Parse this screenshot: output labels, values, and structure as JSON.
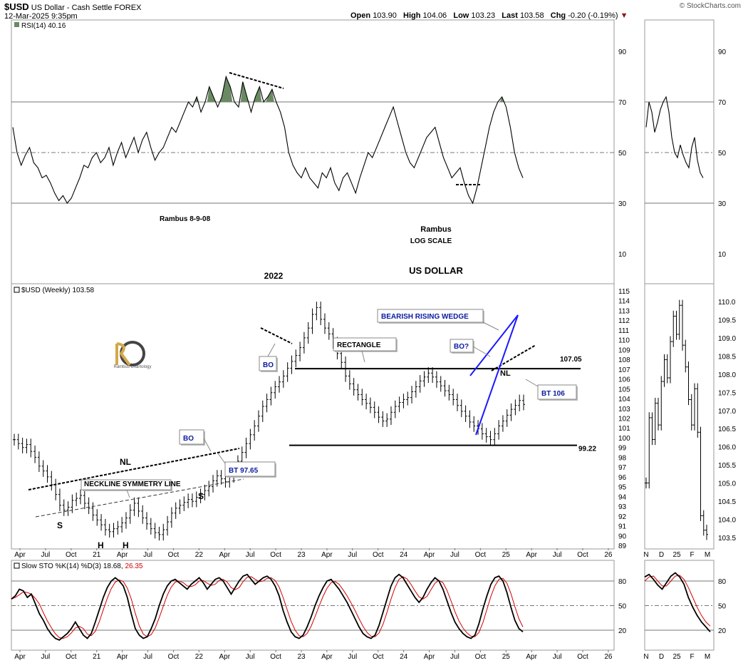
{
  "header": {
    "symbol": "$USD",
    "description": "US Dollar - Cash Settle  FOREX",
    "datetime": "12-Mar-2025 9:35pm",
    "brand": "© StockCharts.com",
    "open_label": "Open",
    "open": "103.90",
    "high_label": "High",
    "high": "104.06",
    "low_label": "Low",
    "low": "103.23",
    "last_label": "Last",
    "last": "103.58",
    "chg_label": "Chg",
    "chg": "-0.20 (-0.19%)",
    "chg_arrow": "▼"
  },
  "colors": {
    "rsi_fill": "#6a8a64",
    "wedge": "#1a1aff",
    "sto_signal": "#d40000",
    "label_blue": "#0a1aa0"
  },
  "x_axis_labels": [
    "Apr",
    "Jul",
    "Oct",
    "21",
    "Apr",
    "Jul",
    "Oct",
    "22",
    "Apr",
    "Jul",
    "Oct",
    "23",
    "Apr",
    "Jul",
    "Oct",
    "24",
    "Apr",
    "Jul",
    "Oct",
    "25",
    "Apr",
    "Jul",
    "Oct",
    "26"
  ],
  "side_x_axis_labels": [
    "N",
    "D",
    "25",
    "F",
    "M"
  ],
  "chart_data": [
    {
      "type": "line",
      "name": "rsi",
      "title": "RSI(14) 40.16",
      "ylim": [
        0,
        100
      ],
      "ticks": [
        90,
        70,
        50,
        30,
        10
      ],
      "reference_lines": [
        70,
        50,
        30
      ],
      "values": [
        60,
        50,
        45,
        49,
        52,
        46,
        44,
        40,
        41,
        38,
        34,
        31,
        33,
        30,
        32,
        36,
        40,
        45,
        44,
        48,
        50,
        46,
        48,
        52,
        45,
        50,
        54,
        48,
        52,
        56,
        50,
        55,
        58,
        52,
        47,
        50,
        52,
        56,
        60,
        58,
        62,
        66,
        70,
        68,
        72,
        66,
        70,
        76,
        72,
        68,
        72,
        80,
        76,
        70,
        68,
        78,
        72,
        66,
        72,
        76,
        70,
        72,
        75,
        70,
        66,
        60,
        50,
        45,
        42,
        40,
        44,
        40,
        38,
        36,
        42,
        40,
        44,
        38,
        35,
        40,
        42,
        38,
        34,
        40,
        45,
        50,
        48,
        52,
        56,
        60,
        64,
        68,
        62,
        56,
        50,
        46,
        44,
        48,
        52,
        56,
        58,
        60,
        54,
        48,
        44,
        40,
        42,
        44,
        38,
        33,
        30,
        36,
        44,
        52,
        60,
        66,
        70,
        72,
        68,
        60,
        50,
        44,
        40
      ],
      "side_values": [
        60,
        70,
        66,
        58,
        62,
        67,
        70,
        72,
        66,
        56,
        50,
        48,
        53,
        49,
        46,
        44,
        52,
        56,
        47,
        42,
        40
      ],
      "annotations": [
        "Rambus  8-9-08",
        "Rambus",
        "LOG SCALE"
      ]
    },
    {
      "type": "bar",
      "name": "price",
      "title": "$USD (Weekly) 103.58",
      "heading": "US DOLLAR",
      "ylim": [
        89,
        115
      ],
      "ticks": [
        115,
        114,
        113,
        112,
        111,
        110,
        109,
        108,
        107,
        106,
        105,
        104,
        103,
        102,
        101,
        100,
        99,
        98,
        97,
        96,
        95,
        94,
        93,
        92,
        91,
        90,
        89
      ],
      "side_ylim": [
        103.3,
        110.2
      ],
      "side_ticks": [
        "110.0",
        "109.5",
        "109.0",
        "108.5",
        "108.0",
        "107.5",
        "107.0",
        "106.5",
        "106.0",
        "105.5",
        "105.0",
        "104.5",
        "104.0",
        "103.5"
      ],
      "closes": [
        99.8,
        99.4,
        99.0,
        99.3,
        98.6,
        98.0,
        97.1,
        96.6,
        96.0,
        95.2,
        94.2,
        93.1,
        92.6,
        92.9,
        93.6,
        93.8,
        94.1,
        93.3,
        92.8,
        92.1,
        91.6,
        91.1,
        90.6,
        90.4,
        90.7,
        90.9,
        91.3,
        91.8,
        92.6,
        93.3,
        92.5,
        91.8,
        91.2,
        90.7,
        90.3,
        90.1,
        90.6,
        91.4,
        92.3,
        92.8,
        93.1,
        93.4,
        93.7,
        93.5,
        93.9,
        94.2,
        94.6,
        95.0,
        95.6,
        96.1,
        95.8,
        95.5,
        96.0,
        96.7,
        97.6,
        98.5,
        99.4,
        100.3,
        101.2,
        102.2,
        103.2,
        103.9,
        104.6,
        105.2,
        105.7,
        106.3,
        107.1,
        107.8,
        108.4,
        109.2,
        110.2,
        111.2,
        112.6,
        113.3,
        112.1,
        111.2,
        110.6,
        109.7,
        108.6,
        107.7,
        106.3,
        105.5,
        104.9,
        104.4,
        103.9,
        103.5,
        103.1,
        102.6,
        102.1,
        101.7,
        101.9,
        102.6,
        103.2,
        103.6,
        103.9,
        104.1,
        104.7,
        105.2,
        105.8,
        106.2,
        106.6,
        106.2,
        105.7,
        105.3,
        104.8,
        104.4,
        103.9,
        103.3,
        102.7,
        102.2,
        101.6,
        101.2,
        100.9,
        100.4,
        100.1,
        99.8,
        100.4,
        101.2,
        101.7,
        102.3,
        102.9,
        103.3,
        103.8,
        103.4
      ],
      "side_closes": [
        105.0,
        106.8,
        106.2,
        107.2,
        106.6,
        107.8,
        108.4,
        107.9,
        108.9,
        109.6,
        109.1,
        109.9,
        108.8,
        108.2,
        107.3,
        106.6,
        107.6,
        106.4,
        104.1,
        103.7,
        103.58
      ],
      "levels": [
        {
          "value": 107.05,
          "label": "107.05"
        },
        {
          "value": 99.22,
          "label": "99.22"
        }
      ],
      "annotations": [
        "2022",
        "RECTANGLE",
        "BEARISH RISING WEDGE",
        "BO",
        "BO",
        "BO?",
        "BT 97.65",
        "BT 106",
        "NL",
        "NL",
        "NECKLINE SYMMETRY LINE",
        "S",
        "S",
        "H",
        "H"
      ],
      "logo_text": "Rambus Chartology"
    },
    {
      "type": "line",
      "name": "stochastic",
      "title": "Slow STO %K(14) %D(3) 18.68, 26.35",
      "k_value": "18.68",
      "d_value": "26.35",
      "ylim": [
        0,
        100
      ],
      "ticks": [
        80,
        50,
        20
      ],
      "reference_lines": [
        80,
        50,
        20
      ],
      "k_values": [
        58,
        62,
        70,
        68,
        60,
        64,
        52,
        40,
        32,
        22,
        15,
        10,
        8,
        12,
        16,
        22,
        30,
        22,
        14,
        10,
        16,
        30,
        45,
        60,
        72,
        80,
        84,
        80,
        74,
        60,
        40,
        22,
        14,
        10,
        12,
        22,
        34,
        50,
        64,
        74,
        80,
        82,
        78,
        74,
        70,
        76,
        80,
        84,
        78,
        70,
        76,
        82,
        84,
        80,
        72,
        64,
        72,
        80,
        86,
        88,
        82,
        76,
        80,
        84,
        86,
        82,
        74,
        62,
        44,
        30,
        18,
        12,
        10,
        14,
        24,
        36,
        50,
        62,
        72,
        80,
        82,
        76,
        70,
        62,
        54,
        44,
        34,
        24,
        16,
        12,
        10,
        14,
        26,
        42,
        58,
        74,
        84,
        88,
        84,
        76,
        68,
        60,
        54,
        60,
        70,
        78,
        84,
        80,
        70,
        56,
        42,
        30,
        22,
        16,
        12,
        10,
        14,
        28,
        46,
        62,
        76,
        84,
        86,
        80,
        66,
        48,
        32,
        22,
        18
      ],
      "side_k_values": [
        85,
        88,
        82,
        75,
        70,
        78,
        86,
        90,
        85,
        76,
        60,
        48,
        38,
        30,
        24,
        18
      ],
      "side_d_values": [
        80,
        85,
        86,
        80,
        74,
        74,
        80,
        86,
        87,
        82,
        72,
        60,
        48,
        38,
        30,
        25
      ]
    }
  ]
}
